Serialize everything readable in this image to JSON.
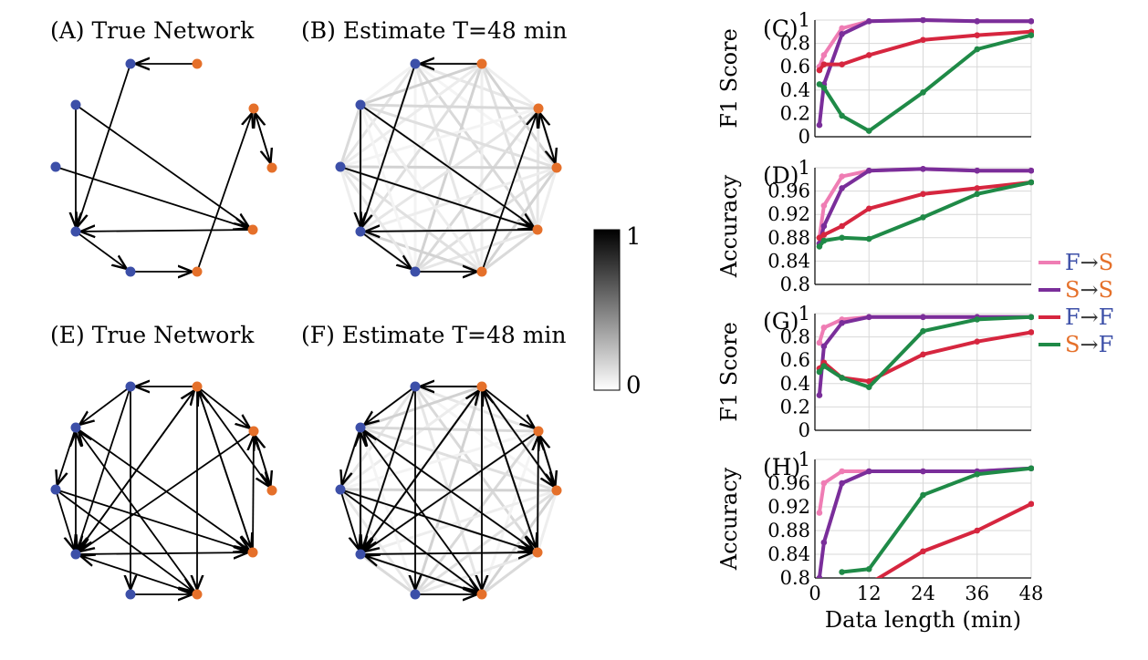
{
  "network_panels": [
    {
      "id": "A",
      "title": "(A) True Network"
    },
    {
      "id": "B",
      "title": "(B) Estimate T=48 min"
    },
    {
      "id": "E",
      "title": "(E) True Network"
    },
    {
      "id": "F",
      "title": "(F) Estimate T=48 min"
    }
  ],
  "colorbar": {
    "max_label": "1",
    "min_label": "0"
  },
  "colors": {
    "fast_node": "#3c4fa8",
    "slow_node": "#e5702a",
    "F_to_S": "#ef7db4",
    "S_to_S": "#7a2e9a",
    "F_to_F": "#d6263f",
    "S_to_F": "#1f8a47"
  },
  "legend": [
    {
      "from": "F",
      "arrow": "→",
      "to": "S",
      "from_color": "#3c4fa8",
      "to_color": "#e5702a",
      "line_color": "#ef7db4"
    },
    {
      "from": "S",
      "arrow": "→",
      "to": "S",
      "from_color": "#e5702a",
      "to_color": "#e5702a",
      "line_color": "#7a2e9a"
    },
    {
      "from": "F",
      "arrow": "→",
      "to": "F",
      "from_color": "#3c4fa8",
      "to_color": "#3c4fa8",
      "line_color": "#d6263f"
    },
    {
      "from": "S",
      "arrow": "→",
      "to": "F",
      "from_color": "#e5702a",
      "to_color": "#3c4fa8",
      "line_color": "#1f8a47"
    }
  ],
  "chart_data": [
    {
      "panel": "(C)",
      "type": "line",
      "ylabel": "F1 Score",
      "xlabel": "",
      "ylim": [
        0,
        1
      ],
      "yticks": [
        "0",
        "0.2",
        "0.4",
        "0.6",
        "0.8",
        "1"
      ],
      "xlim": [
        0,
        48
      ],
      "x": [
        1,
        2,
        6,
        12,
        24,
        36,
        48
      ],
      "series": [
        {
          "name": "F→S",
          "color": "#ef7db4",
          "values": [
            0.6,
            0.7,
            0.93,
            0.99,
            1.0,
            0.99,
            0.99
          ]
        },
        {
          "name": "S→S",
          "color": "#7a2e9a",
          "values": [
            0.1,
            0.45,
            0.88,
            0.99,
            1.0,
            0.99,
            0.99
          ]
        },
        {
          "name": "F→F",
          "color": "#d6263f",
          "values": [
            0.57,
            0.62,
            0.62,
            0.7,
            0.83,
            0.87,
            0.9
          ]
        },
        {
          "name": "S→F",
          "color": "#1f8a47",
          "values": [
            0.45,
            0.42,
            0.18,
            0.05,
            0.38,
            0.75,
            0.87
          ]
        }
      ]
    },
    {
      "panel": "(D)",
      "type": "line",
      "ylabel": "Accuracy",
      "xlabel": "",
      "ylim": [
        0.8,
        1
      ],
      "yticks": [
        "0.8",
        "0.84",
        "0.88",
        "0.92",
        "0.96",
        "1"
      ],
      "xlim": [
        0,
        48
      ],
      "x": [
        1,
        2,
        6,
        12,
        24,
        36,
        48
      ],
      "series": [
        {
          "name": "F→S",
          "color": "#ef7db4",
          "values": [
            0.88,
            0.935,
            0.985,
            0.995,
            0.998,
            0.995,
            0.995
          ]
        },
        {
          "name": "S→S",
          "color": "#7a2e9a",
          "values": [
            0.87,
            0.9,
            0.965,
            0.995,
            0.998,
            0.995,
            0.995
          ]
        },
        {
          "name": "F→F",
          "color": "#d6263f",
          "values": [
            0.88,
            0.885,
            0.9,
            0.93,
            0.955,
            0.965,
            0.975
          ]
        },
        {
          "name": "S→F",
          "color": "#1f8a47",
          "values": [
            0.865,
            0.875,
            0.88,
            0.878,
            0.915,
            0.955,
            0.975
          ]
        }
      ]
    },
    {
      "panel": "(G)",
      "type": "line",
      "ylabel": "F1 Score",
      "xlabel": "",
      "ylim": [
        0,
        1
      ],
      "yticks": [
        "0",
        "0.2",
        "0.4",
        "0.6",
        "0.8",
        "1"
      ],
      "xlim": [
        0,
        48
      ],
      "x": [
        1,
        2,
        6,
        12,
        24,
        36,
        48
      ],
      "series": [
        {
          "name": "F→S",
          "color": "#ef7db4",
          "values": [
            0.75,
            0.88,
            0.95,
            0.97,
            0.97,
            0.97,
            0.97
          ]
        },
        {
          "name": "S→S",
          "color": "#7a2e9a",
          "values": [
            0.3,
            0.72,
            0.92,
            0.97,
            0.97,
            0.97,
            0.97
          ]
        },
        {
          "name": "F→F",
          "color": "#d6263f",
          "values": [
            0.53,
            0.58,
            0.45,
            0.42,
            0.65,
            0.76,
            0.84
          ]
        },
        {
          "name": "S→F",
          "color": "#1f8a47",
          "values": [
            0.5,
            0.55,
            0.45,
            0.37,
            0.85,
            0.95,
            0.97
          ]
        }
      ]
    },
    {
      "panel": "(H)",
      "type": "line",
      "ylabel": "Accuracy",
      "xlabel": "Data length (min)",
      "ylim": [
        0.8,
        1
      ],
      "yticks": [
        "0.8",
        "0.84",
        "0.88",
        "0.92",
        "0.96",
        "1"
      ],
      "xlim": [
        0,
        48
      ],
      "x": [
        1,
        2,
        6,
        12,
        24,
        36,
        48
      ],
      "xticks": [
        "0",
        "12",
        "24",
        "36",
        "48"
      ],
      "series": [
        {
          "name": "F→S",
          "color": "#ef7db4",
          "values": [
            0.91,
            0.96,
            0.98,
            0.98,
            0.98,
            0.98,
            0.985
          ]
        },
        {
          "name": "S→S",
          "color": "#7a2e9a",
          "values": [
            0.8,
            0.86,
            0.96,
            0.98,
            0.98,
            0.98,
            0.985
          ]
        },
        {
          "name": "F→F",
          "color": "#d6263f",
          "values": [
            null,
            null,
            0.76,
            0.79,
            0.845,
            0.88,
            0.925
          ]
        },
        {
          "name": "S→F",
          "color": "#1f8a47",
          "values": [
            null,
            null,
            0.81,
            0.815,
            0.94,
            0.975,
            0.985
          ]
        }
      ]
    }
  ]
}
